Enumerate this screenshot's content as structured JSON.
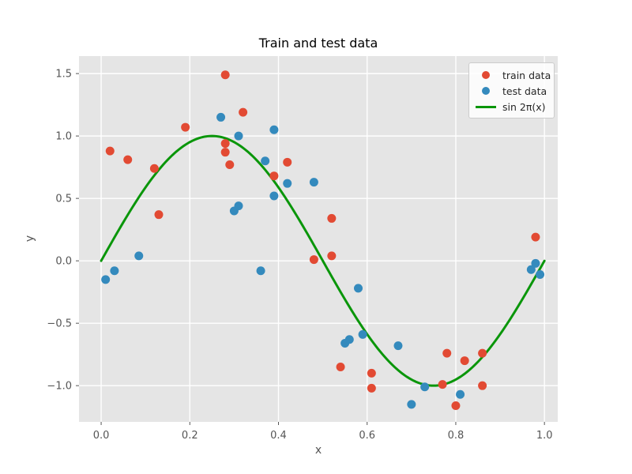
{
  "figure": {
    "title": "Train and test data",
    "xlabel": "x",
    "ylabel": "y"
  },
  "legend": {
    "items": [
      {
        "label": "train data",
        "marker": "dot",
        "color": "#E24A33"
      },
      {
        "label": "test data",
        "marker": "dot",
        "color": "#348ABD"
      },
      {
        "label": "sin 2π(x)",
        "marker": "line",
        "color": "#0A960A"
      }
    ]
  },
  "chart_data": {
    "type": "scatter",
    "title": "Train and test data",
    "xlabel": "x",
    "ylabel": "y",
    "xlim": [
      -0.05,
      1.03
    ],
    "ylim": [
      -1.29,
      1.64
    ],
    "xticks": [
      0.0,
      0.2,
      0.4,
      0.6,
      0.8,
      1.0
    ],
    "yticks": [
      -1.0,
      -0.5,
      0.0,
      0.5,
      1.0,
      1.5
    ],
    "grid": true,
    "plot_background": "#E5E5E5",
    "gridline_color": "#FFFFFF",
    "tick_color": "#555555",
    "legend_position": "upper right",
    "series": [
      {
        "name": "train data",
        "type": "scatter",
        "color": "#E24A33",
        "points": [
          [
            0.02,
            0.88
          ],
          [
            0.06,
            0.81
          ],
          [
            0.12,
            0.74
          ],
          [
            0.13,
            0.37
          ],
          [
            0.19,
            1.07
          ],
          [
            0.28,
            1.49
          ],
          [
            0.28,
            0.94
          ],
          [
            0.28,
            0.87
          ],
          [
            0.29,
            0.77
          ],
          [
            0.32,
            1.19
          ],
          [
            0.39,
            0.68
          ],
          [
            0.42,
            0.79
          ],
          [
            0.48,
            0.01
          ],
          [
            0.52,
            0.34
          ],
          [
            0.52,
            0.04
          ],
          [
            0.54,
            -0.85
          ],
          [
            0.61,
            -0.9
          ],
          [
            0.61,
            -1.02
          ],
          [
            0.77,
            -0.99
          ],
          [
            0.78,
            -0.74
          ],
          [
            0.8,
            -1.16
          ],
          [
            0.82,
            -0.8
          ],
          [
            0.86,
            -0.74
          ],
          [
            0.86,
            -1.0
          ],
          [
            0.98,
            0.19
          ]
        ]
      },
      {
        "name": "test data",
        "type": "scatter",
        "color": "#348ABD",
        "points": [
          [
            0.01,
            -0.15
          ],
          [
            0.03,
            -0.08
          ],
          [
            0.085,
            0.04
          ],
          [
            0.27,
            1.15
          ],
          [
            0.3,
            0.4
          ],
          [
            0.31,
            0.44
          ],
          [
            0.31,
            1.0
          ],
          [
            0.36,
            -0.08
          ],
          [
            0.37,
            0.8
          ],
          [
            0.39,
            0.52
          ],
          [
            0.39,
            1.05
          ],
          [
            0.42,
            0.62
          ],
          [
            0.48,
            0.63
          ],
          [
            0.55,
            -0.66
          ],
          [
            0.56,
            -0.63
          ],
          [
            0.58,
            -0.22
          ],
          [
            0.59,
            -0.59
          ],
          [
            0.67,
            -0.68
          ],
          [
            0.7,
            -1.15
          ],
          [
            0.73,
            -1.01
          ],
          [
            0.81,
            -1.07
          ],
          [
            0.97,
            -0.07
          ],
          [
            0.98,
            -0.02
          ],
          [
            0.99,
            -0.11
          ]
        ]
      },
      {
        "name": "sin 2π(x)",
        "type": "line",
        "color": "#0A960A",
        "function": "sin(2*pi*x)",
        "x_range": [
          0,
          1
        ],
        "line_width": 3
      }
    ]
  }
}
